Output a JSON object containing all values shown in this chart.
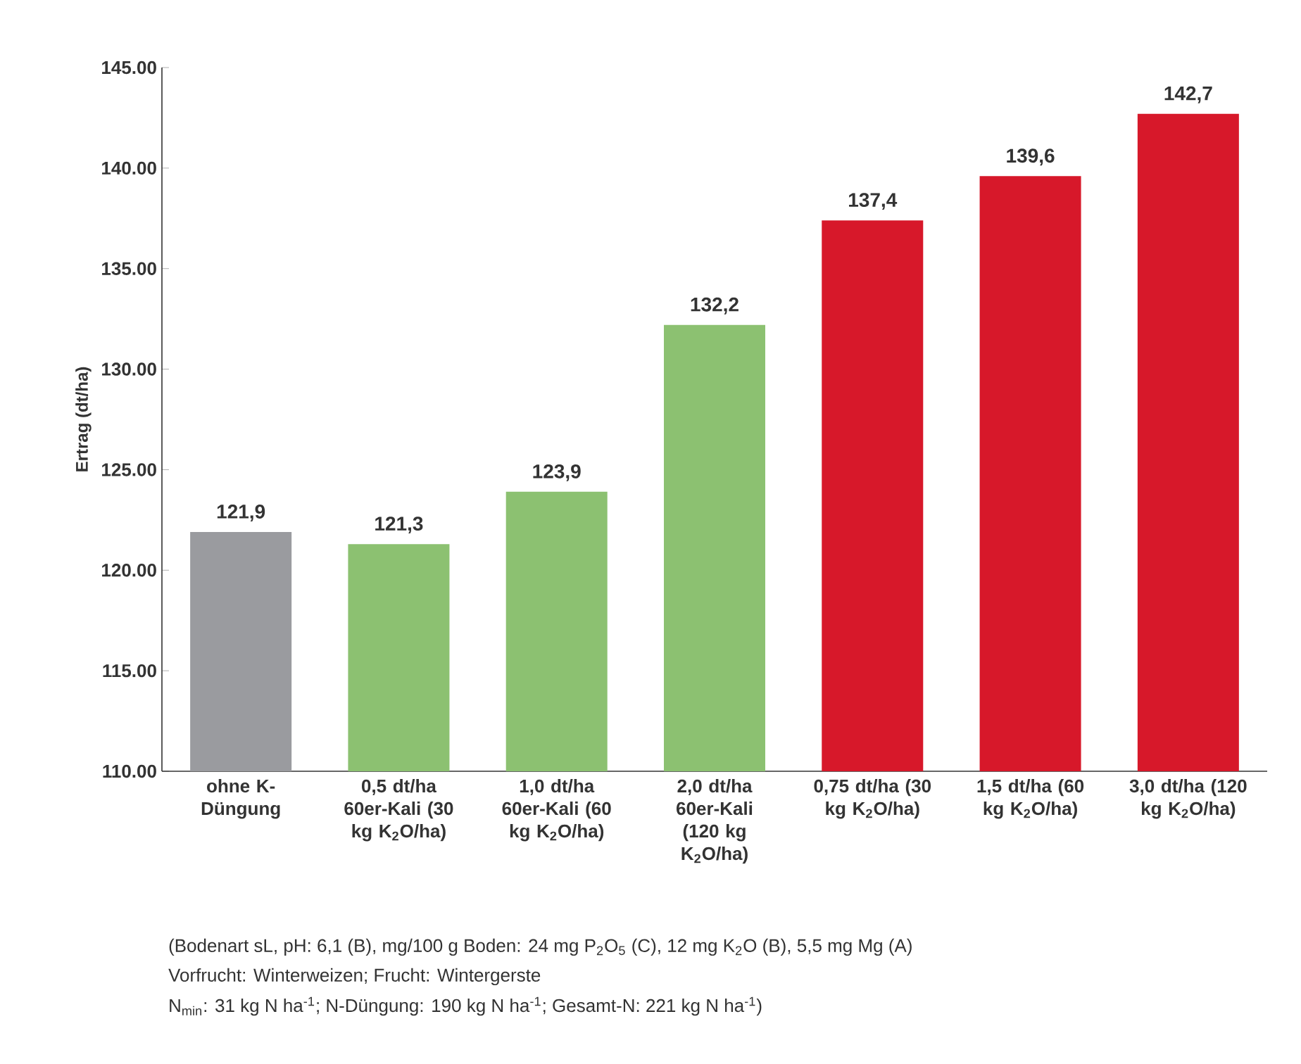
{
  "chart_data": {
    "type": "bar",
    "ylabel": "Ertrag (dt/ha)",
    "categories": [
      "ohne K-Düngung",
      "0,5 dt/ha 60er-Kali (30 kg K$_{2}$O/ha)",
      "1,0 dt/ha 60er-Kali (60 kg K$_{2}$O/ha)",
      "2,0 dt/ha 60er-Kali (120 kg K$_{2}$O/ha)",
      "0,75 dt/ha (30 kg K$_{2}$O/ha)",
      "1,5 dt/ha (60 kg K$_{2}$O/ha)",
      "3,0 dt/ha (120 kg K$_{2}$O/ha)"
    ],
    "values": [
      121.9,
      121.3,
      123.9,
      132.2,
      137.4,
      139.6,
      142.7
    ],
    "value_labels": [
      "121,9",
      "121,3",
      "123,9",
      "132,2",
      "137,4",
      "139,6",
      "142,7"
    ],
    "colors": [
      "#9a9b9f",
      "#8cc171",
      "#8cc171",
      "#8cc171",
      "#d7182a",
      "#d7182a",
      "#d7182a"
    ],
    "ylim": [
      110,
      145
    ],
    "yticks": [
      {
        "value": 110,
        "label": "110.00"
      },
      {
        "value": 115,
        "label": "115.00"
      },
      {
        "value": 120,
        "label": "120.00"
      },
      {
        "value": 125,
        "label": "125.00"
      },
      {
        "value": 130,
        "label": "130.00"
      },
      {
        "value": 135,
        "label": "135.00"
      },
      {
        "value": 140,
        "label": "140.00"
      },
      {
        "value": 145,
        "label": "145.00"
      }
    ],
    "grid": false,
    "annotations": [
      "(Bodenart sL, pH: 6,1 (B), mg/100 g Boden: 24 mg P$_{2}$O$_{5}$ (C), 12 mg K$_{2}$O (B), 5,5 mg Mg (A)",
      "Vorfrucht: Winterweizen; Frucht: Wintergerste",
      "N$_{min}$: 31 kg N ha$^{-1}$; N-Düngung: 190 kg N ha$^{-1}$; Gesamt-N: 221 kg N ha$^{-1}$)"
    ]
  }
}
